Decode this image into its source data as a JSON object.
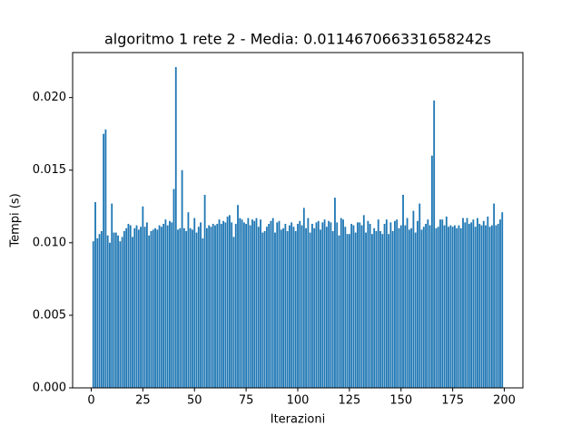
{
  "chart_data": {
    "type": "bar",
    "title": "algoritmo 1 rete 2 - Media: 0.011467066331658242s",
    "xlabel": "Iterazioni",
    "ylabel": "Tempi (s)",
    "color": "#1f77b4",
    "bar_width": 0.8,
    "x": [
      1,
      2,
      3,
      4,
      5,
      6,
      7,
      8,
      9,
      10,
      11,
      12,
      13,
      14,
      15,
      16,
      17,
      18,
      19,
      20,
      21,
      22,
      23,
      24,
      25,
      26,
      27,
      28,
      29,
      30,
      31,
      32,
      33,
      34,
      35,
      36,
      37,
      38,
      39,
      40,
      41,
      42,
      43,
      44,
      45,
      46,
      47,
      48,
      49,
      50,
      51,
      52,
      53,
      54,
      55,
      56,
      57,
      58,
      59,
      60,
      61,
      62,
      63,
      64,
      65,
      66,
      67,
      68,
      69,
      70,
      71,
      72,
      73,
      74,
      75,
      76,
      77,
      78,
      79,
      80,
      81,
      82,
      83,
      84,
      85,
      86,
      87,
      88,
      89,
      90,
      91,
      92,
      93,
      94,
      95,
      96,
      97,
      98,
      99,
      100,
      101,
      102,
      103,
      104,
      105,
      106,
      107,
      108,
      109,
      110,
      111,
      112,
      113,
      114,
      115,
      116,
      117,
      118,
      119,
      120,
      121,
      122,
      123,
      124,
      125,
      126,
      127,
      128,
      129,
      130,
      131,
      132,
      133,
      134,
      135,
      136,
      137,
      138,
      139,
      140,
      141,
      142,
      143,
      144,
      145,
      146,
      147,
      148,
      149,
      150,
      151,
      152,
      153,
      154,
      155,
      156,
      157,
      158,
      159,
      160,
      161,
      162,
      163,
      164,
      165,
      166,
      167,
      168,
      169,
      170,
      171,
      172,
      173,
      174,
      175,
      176,
      177,
      178,
      179,
      180,
      181,
      182,
      183,
      184,
      185,
      186,
      187,
      188,
      189,
      190,
      191,
      192,
      193,
      194,
      195,
      196,
      197,
      198,
      199
    ],
    "values": [
      0.0101,
      0.0128,
      0.0103,
      0.0106,
      0.0108,
      0.0175,
      0.0178,
      0.0105,
      0.01,
      0.0127,
      0.0107,
      0.0107,
      0.0105,
      0.0101,
      0.0104,
      0.0108,
      0.011,
      0.0113,
      0.0112,
      0.0104,
      0.011,
      0.0112,
      0.0109,
      0.0111,
      0.0125,
      0.0111,
      0.0114,
      0.0105,
      0.0108,
      0.0109,
      0.011,
      0.0109,
      0.0112,
      0.0111,
      0.0113,
      0.0116,
      0.0112,
      0.0115,
      0.0114,
      0.0137,
      0.0221,
      0.0109,
      0.011,
      0.015,
      0.011,
      0.0108,
      0.0121,
      0.011,
      0.0109,
      0.0117,
      0.0107,
      0.0111,
      0.0114,
      0.0103,
      0.0133,
      0.011,
      0.0112,
      0.0111,
      0.0113,
      0.0112,
      0.0113,
      0.0116,
      0.0113,
      0.0115,
      0.0114,
      0.0118,
      0.0119,
      0.0114,
      0.0104,
      0.0113,
      0.0126,
      0.0117,
      0.0116,
      0.0114,
      0.0113,
      0.0117,
      0.0112,
      0.0116,
      0.0115,
      0.0117,
      0.0111,
      0.0116,
      0.0107,
      0.0108,
      0.0111,
      0.0113,
      0.0115,
      0.0117,
      0.0107,
      0.0114,
      0.0115,
      0.0109,
      0.011,
      0.0113,
      0.0108,
      0.0112,
      0.0114,
      0.0111,
      0.0108,
      0.0113,
      0.0115,
      0.0112,
      0.0124,
      0.011,
      0.0117,
      0.0107,
      0.0113,
      0.011,
      0.0114,
      0.0115,
      0.0109,
      0.0114,
      0.0116,
      0.0111,
      0.0115,
      0.0114,
      0.0108,
      0.0131,
      0.0114,
      0.0105,
      0.0117,
      0.0116,
      0.0111,
      0.0106,
      0.0106,
      0.0113,
      0.0112,
      0.0107,
      0.0114,
      0.0114,
      0.0112,
      0.0119,
      0.0107,
      0.0115,
      0.0113,
      0.0106,
      0.011,
      0.0108,
      0.0116,
      0.0108,
      0.0106,
      0.0113,
      0.0116,
      0.0106,
      0.0114,
      0.0108,
      0.0115,
      0.0116,
      0.011,
      0.0112,
      0.0133,
      0.0112,
      0.0117,
      0.0109,
      0.011,
      0.0122,
      0.0107,
      0.0115,
      0.0127,
      0.0109,
      0.0111,
      0.0113,
      0.0116,
      0.0112,
      0.016,
      0.0198,
      0.011,
      0.0111,
      0.0116,
      0.0116,
      0.0112,
      0.0118,
      0.0111,
      0.0112,
      0.0111,
      0.0112,
      0.011,
      0.0112,
      0.011,
      0.0117,
      0.0114,
      0.0117,
      0.0113,
      0.0114,
      0.0116,
      0.0111,
      0.0117,
      0.0113,
      0.0112,
      0.0115,
      0.0112,
      0.0118,
      0.0111,
      0.0112,
      0.0127,
      0.0112,
      0.0113,
      0.0116,
      0.0121
    ],
    "xlim": [
      -9,
      209
    ],
    "xticks": [
      0,
      25,
      50,
      75,
      100,
      125,
      150,
      175,
      200
    ],
    "ylim": [
      0,
      0.0231
    ],
    "yticks": [
      {
        "value": 0,
        "label": "0.000"
      },
      {
        "value": 0.005,
        "label": "0.005"
      },
      {
        "value": 0.01,
        "label": "0.010"
      },
      {
        "value": 0.015,
        "label": "0.015"
      },
      {
        "value": 0.02,
        "label": "0.020"
      }
    ]
  }
}
